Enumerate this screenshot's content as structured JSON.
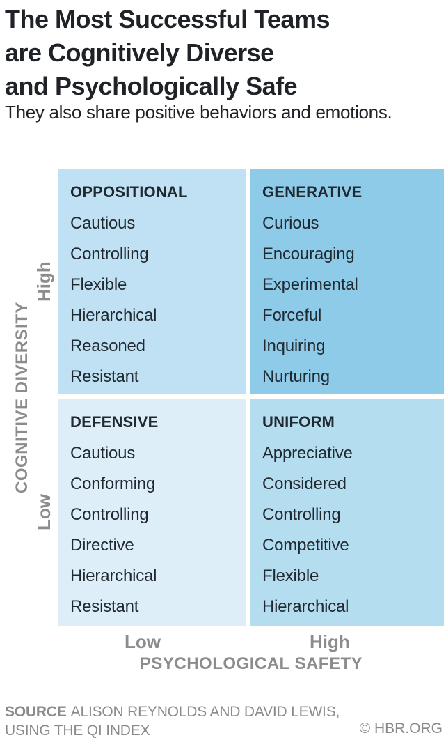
{
  "page": {
    "title_lines": [
      "The Most Successful Teams",
      "are Cognitively Diverse",
      "and Psychologically Safe"
    ],
    "subtitle": "They also share positive behaviors and emotions."
  },
  "chart_data": {
    "type": "table",
    "subtype": "2x2-quadrant-matrix",
    "title": "The Most Successful Teams are Cognitively Diverse and Psychologically Safe",
    "subtitle": "They also share positive behaviors and emotions.",
    "x_axis": {
      "label": "PSYCHOLOGICAL SAFETY",
      "low": "Low",
      "high": "High"
    },
    "y_axis": {
      "label": "COGNITIVE DIVERSITY",
      "low": "Low",
      "high": "High"
    },
    "quadrants": [
      {
        "position": "top-left",
        "cognitive_diversity": "High",
        "psychological_safety": "Low",
        "name": "OPPOSITIONAL",
        "color": "#bfe1f3",
        "traits": [
          "Cautious",
          "Controlling",
          "Flexible",
          "Hierarchical",
          "Reasoned",
          "Resistant"
        ]
      },
      {
        "position": "top-right",
        "cognitive_diversity": "High",
        "psychological_safety": "High",
        "name": "GENERATIVE",
        "color": "#8ecbe9",
        "traits": [
          "Curious",
          "Encouraging",
          "Experimental",
          "Forceful",
          "Inquiring",
          "Nurturing"
        ]
      },
      {
        "position": "bottom-left",
        "cognitive_diversity": "Low",
        "psychological_safety": "Low",
        "name": "DEFENSIVE",
        "color": "#ddeef9",
        "traits": [
          "Cautious",
          "Conforming",
          "Controlling",
          "Directive",
          "Hierarchical",
          "Resistant"
        ]
      },
      {
        "position": "bottom-right",
        "cognitive_diversity": "Low",
        "psychological_safety": "High",
        "name": "UNIFORM",
        "color": "#b5ddf0",
        "traits": [
          "Appreciative",
          "Considered",
          "Controlling",
          "Competitive",
          "Flexible",
          "Hierarchical"
        ]
      }
    ]
  },
  "footer": {
    "source_label": "SOURCE",
    "source_text": "ALISON REYNOLDS AND DAVID LEWIS,",
    "source_text_line2": "USING THE QI INDEX",
    "credit": "© HBR.ORG"
  },
  "colors": {
    "quadrant_high_safety_high_diversity": "#8ecbe9",
    "quadrant_low_safety_high_diversity": "#bfe1f3",
    "quadrant_high_safety_low_diversity": "#b5ddf0",
    "quadrant_low_safety_low_diversity": "#ddeef9",
    "axis_label_gray": "#8c8c8c",
    "text_dark": "#1f2328"
  }
}
